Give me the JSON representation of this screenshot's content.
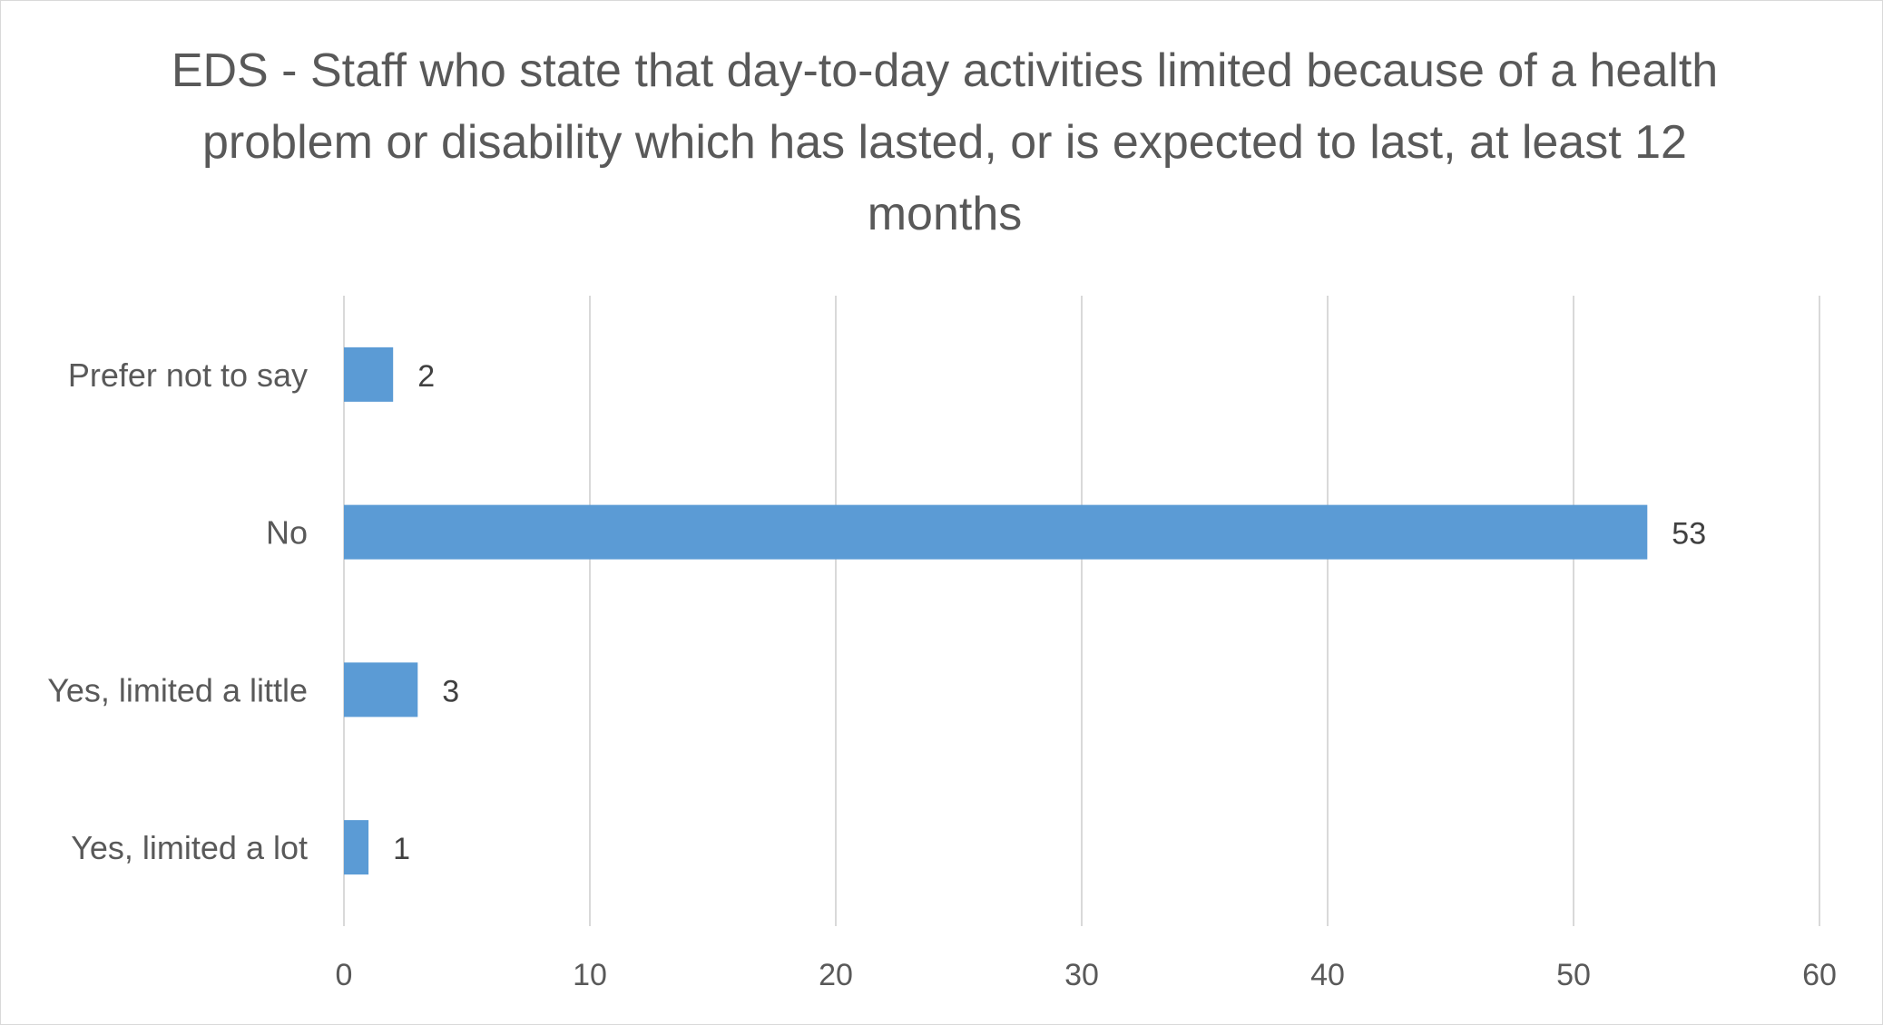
{
  "chart_data": {
    "type": "bar",
    "orientation": "horizontal",
    "title": "EDS - Staff who state that day-to-day activities limited because of a health problem or disability which has lasted, or is expected to last, at least 12 months",
    "categories": [
      "Prefer not to say",
      "No",
      "Yes, limited a little",
      "Yes, limited a lot"
    ],
    "values": [
      2,
      53,
      3,
      1
    ],
    "data_labels": [
      "2",
      "53",
      "3",
      "1"
    ],
    "xlim": [
      0,
      60
    ],
    "x_ticks": [
      0,
      10,
      20,
      30,
      40,
      50,
      60
    ],
    "x_tick_labels": [
      "0",
      "10",
      "20",
      "30",
      "40",
      "50",
      "60"
    ],
    "xlabel": "",
    "ylabel": "",
    "grid": "vertical major gridlines",
    "legend": "none",
    "bar_color": "#5b9bd5",
    "gridline_color": "#d9d9d9"
  }
}
